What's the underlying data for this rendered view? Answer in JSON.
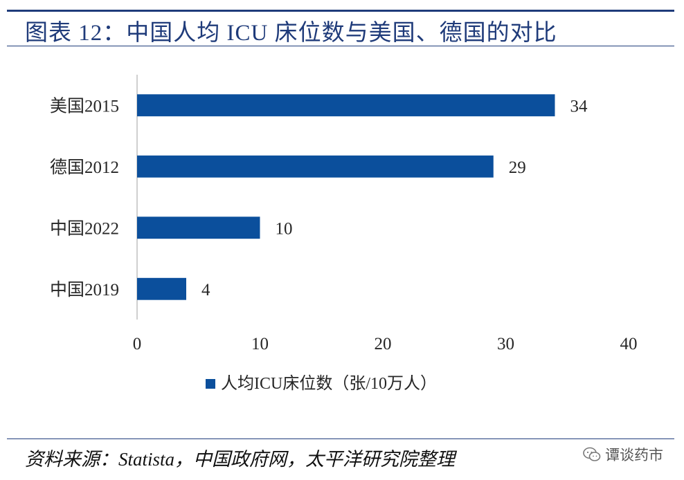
{
  "header": {
    "title": "图表 12：中国人均 ICU 床位数与美国、德国的对比"
  },
  "footer": {
    "source": "资料来源：Statista，中国政府网，太平洋研究院整理",
    "watermark": "谭谈药市"
  },
  "colors": {
    "bar": "#0b4f9c",
    "rule": "#1f3b7a",
    "axis": "#bfbfbf",
    "text": "#262626"
  },
  "chart_data": {
    "type": "bar",
    "orientation": "horizontal",
    "categories": [
      "美国2015",
      "德国2012",
      "中国2022",
      "中国2019"
    ],
    "series": [
      {
        "name": "人均ICU床位数（张/10万人）",
        "values": [
          34,
          29,
          10,
          4
        ]
      }
    ],
    "xlim": [
      0,
      40
    ],
    "xticks": [
      0,
      10,
      20,
      30,
      40
    ],
    "data_labels": true,
    "grid": false,
    "legend_position": "bottom"
  }
}
